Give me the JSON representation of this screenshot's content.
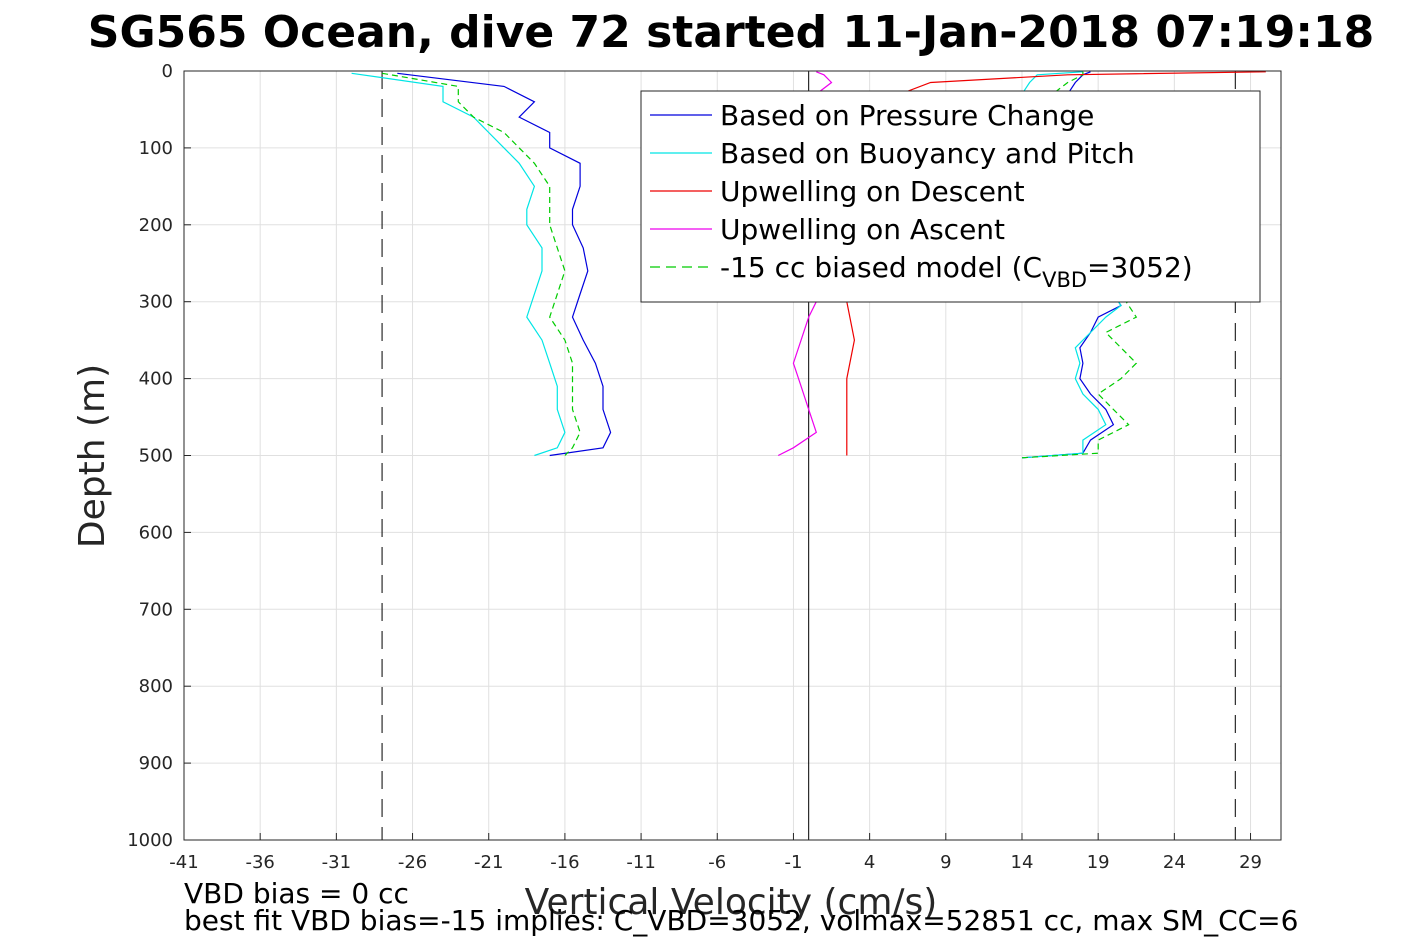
{
  "chart_data": {
    "type": "line",
    "title": "SG565 Ocean, dive 72 started 11-Jan-2018 07:19:18",
    "xlabel": "Vertical Velocity (cm/s)",
    "ylabel": "Depth (m)",
    "xlim": [
      -41,
      31
    ],
    "ylim": [
      0,
      1000
    ],
    "y_reversed": true,
    "grid": true,
    "xticks": [
      -41,
      -36,
      -31,
      -26,
      -21,
      -16,
      -11,
      -6,
      -1,
      4,
      9,
      14,
      19,
      24,
      29
    ],
    "yticks": [
      0,
      100,
      200,
      300,
      400,
      500,
      600,
      700,
      800,
      900,
      1000
    ],
    "reference_lines": {
      "zero_line_x": 0,
      "dashed_limits_x": [
        -28,
        28
      ]
    },
    "legend": {
      "placement": "top-right",
      "entries": [
        {
          "label": "Based on Pressure Change",
          "color": "#0000dd",
          "style": "solid"
        },
        {
          "label": "Based on Buoyancy and Pitch",
          "color": "#00e5e5",
          "style": "solid"
        },
        {
          "label": "Upwelling on Descent",
          "color": "#ee0000",
          "style": "solid"
        },
        {
          "label": "Upwelling on Ascent",
          "color": "#ee00ee",
          "style": "solid"
        },
        {
          "label_prefix": "-15 cc biased model (C",
          "label_sub": "VBD",
          "label_suffix": "=3052)",
          "color": "#00cc00",
          "style": "dashed"
        }
      ]
    },
    "series": [
      {
        "color": "#0000dd",
        "dashed": false,
        "descent": {
          "depth": [
            3,
            20,
            40,
            60,
            80,
            100,
            120,
            150,
            180,
            200,
            230,
            260,
            290,
            320,
            350,
            380,
            410,
            440,
            470,
            490,
            500
          ],
          "velocity": [
            -27,
            -20,
            -18,
            -19,
            -17,
            -17,
            -15,
            -15,
            -15.5,
            -15.5,
            -14.8,
            -14.5,
            -15,
            -15.5,
            -14.8,
            -14,
            -13.5,
            -13.5,
            -13,
            -13.5,
            -17
          ]
        },
        "ascent": {
          "depth": [
            503,
            497,
            480,
            460,
            440,
            420,
            400,
            380,
            360,
            340,
            320,
            305,
            290,
            260,
            200,
            100,
            30,
            15,
            5,
            1
          ],
          "velocity": [
            14,
            18,
            18.5,
            20,
            19.5,
            18.5,
            17.8,
            18,
            17.8,
            18.5,
            19,
            20.5,
            20,
            19.5,
            19,
            18,
            17,
            17.5,
            18,
            18.5
          ]
        }
      },
      {
        "color": "#00e5e5",
        "dashed": false,
        "descent": {
          "depth": [
            3,
            20,
            40,
            60,
            80,
            100,
            120,
            150,
            180,
            200,
            230,
            260,
            290,
            320,
            350,
            380,
            410,
            440,
            470,
            490,
            500
          ],
          "velocity": [
            -30,
            -24,
            -24,
            -22,
            -21,
            -20,
            -19,
            -18,
            -18.5,
            -18.5,
            -17.5,
            -17.5,
            -18,
            -18.5,
            -17.5,
            -17,
            -16.5,
            -16.5,
            -16,
            -16.5,
            -18
          ]
        },
        "ascent": {
          "depth": [
            503,
            497,
            480,
            460,
            440,
            420,
            400,
            380,
            360,
            340,
            320,
            305,
            290,
            260,
            200,
            100,
            30,
            15,
            5,
            1
          ],
          "velocity": [
            14,
            18,
            18,
            19.5,
            19,
            18,
            17.5,
            17.8,
            17.5,
            18.5,
            19.5,
            20.5,
            20,
            19.5,
            19,
            18,
            14,
            14.5,
            15,
            18
          ]
        }
      },
      {
        "color": "#00cc00",
        "dashed": true,
        "descent": {
          "depth": [
            3,
            20,
            40,
            60,
            80,
            100,
            120,
            150,
            180,
            200,
            230,
            260,
            290,
            320,
            350,
            380,
            410,
            440,
            470,
            490,
            500
          ],
          "velocity": [
            -28,
            -23,
            -23,
            -22,
            -20,
            -19,
            -18,
            -17,
            -17,
            -17,
            -16.5,
            -16,
            -16.5,
            -17,
            -16,
            -15.5,
            -15.5,
            -15.5,
            -15,
            -15.5,
            -16
          ]
        },
        "ascent": {
          "depth": [
            503,
            497,
            480,
            460,
            440,
            420,
            400,
            380,
            360,
            340,
            320,
            305,
            290,
            260,
            200,
            100,
            30,
            15,
            5,
            1
          ],
          "velocity": [
            14,
            19,
            19,
            21,
            20,
            19,
            20.5,
            21.5,
            20.5,
            19.5,
            21.5,
            21,
            20.5,
            20,
            19.5,
            18.5,
            16,
            17,
            18,
            18
          ]
        }
      },
      {
        "color": "#ee0000",
        "dashed": false,
        "descent": {
          "depth": [
            1,
            5,
            15,
            30,
            60,
            100,
            150,
            200,
            250,
            300,
            350,
            400,
            450,
            500
          ],
          "velocity": [
            30,
            17,
            8,
            6,
            5,
            4,
            3.5,
            3,
            3,
            2.5,
            3,
            2.5,
            2.5,
            2.5
          ]
        }
      },
      {
        "color": "#ee00ee",
        "dashed": false,
        "ascent": {
          "depth": [
            500,
            490,
            470,
            440,
            410,
            380,
            350,
            320,
            300,
            250,
            200,
            100,
            30,
            15,
            5,
            1
          ],
          "velocity": [
            -2,
            -1,
            0.5,
            0,
            -0.5,
            -1,
            -0.5,
            0,
            0.5,
            0.5,
            0.5,
            0.5,
            0.5,
            1.5,
            1,
            0.5
          ]
        }
      }
    ]
  },
  "footer": {
    "vbd_bias": "VBD bias = 0 cc",
    "best_fit": "best fit VBD bias=-15 implies: C_VBD=3052, volmax=52851 cc, max SM_CC=6"
  }
}
